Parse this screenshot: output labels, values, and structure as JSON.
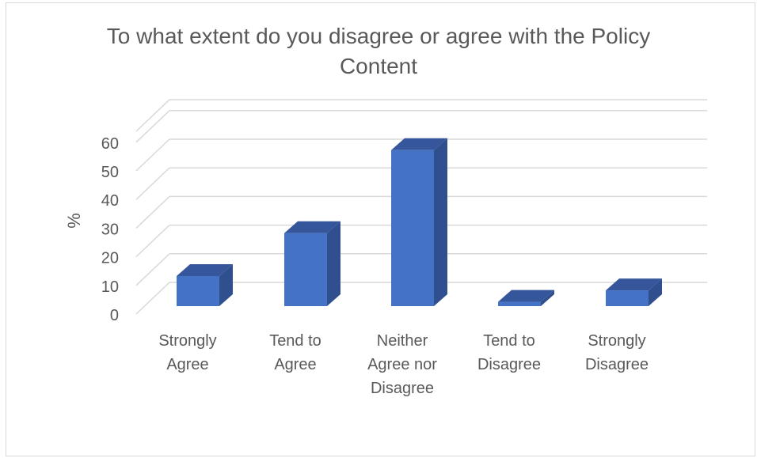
{
  "chart_data": {
    "type": "bar",
    "title_lines": [
      "To what extent do you disagree or agree with the Policy",
      "Content"
    ],
    "ylabel": "%",
    "xlabel": "",
    "ylim": [
      0,
      60
    ],
    "y_ticks": [
      "0",
      "10",
      "20",
      "30",
      "40",
      "50",
      "60"
    ],
    "categories": [
      [
        "Strongly",
        "Agree"
      ],
      [
        "Tend to",
        "Agree"
      ],
      [
        "Neither",
        "Agree nor",
        "Disagree"
      ],
      [
        "Tend to",
        "Disagree"
      ],
      [
        "Strongly",
        "Disagree"
      ]
    ],
    "values": [
      10.5,
      25.5,
      54.5,
      1.5,
      5.5
    ],
    "grid": true,
    "legend": "none",
    "bar_front_color": "#4472c4",
    "bar_side_color": "#2f4f8f",
    "bar_top_color": "#35569a"
  }
}
